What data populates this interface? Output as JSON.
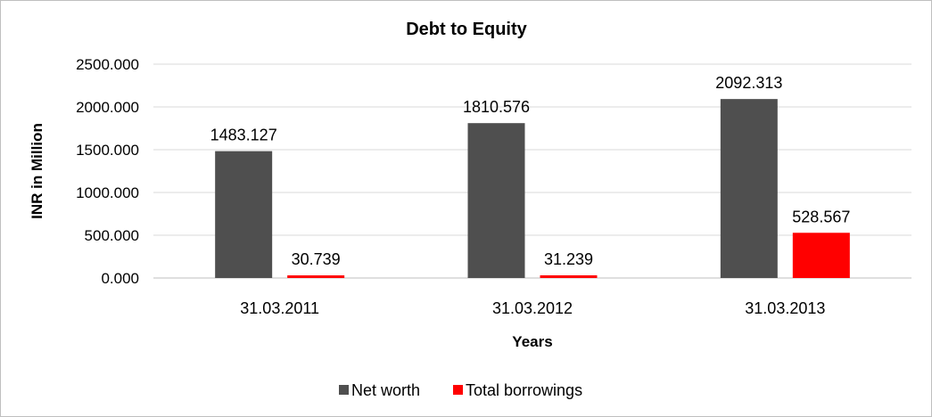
{
  "chart_data": {
    "type": "bar",
    "title": "Debt to Equity",
    "xlabel": "Years",
    "ylabel": "INR in Million",
    "categories": [
      "31.03.2011",
      "31.03.2012",
      "31.03.2013"
    ],
    "series": [
      {
        "name": "Net worth",
        "values": [
          1483.127,
          1810.576,
          2092.313
        ],
        "color": "#4f4f4f",
        "labels": [
          "1483.127",
          "1810.576",
          "2092.313"
        ]
      },
      {
        "name": "Total borrowings",
        "values": [
          30.739,
          31.239,
          528.567
        ],
        "color": "#ff0000",
        "labels": [
          "30.739",
          "31.239",
          "528.567"
        ]
      }
    ],
    "ylim": [
      0,
      2500
    ],
    "yticks": [
      "0.000",
      "500.000",
      "1000.000",
      "1500.000",
      "2000.000",
      "2500.000"
    ],
    "grid": true,
    "legend_position": "bottom"
  }
}
